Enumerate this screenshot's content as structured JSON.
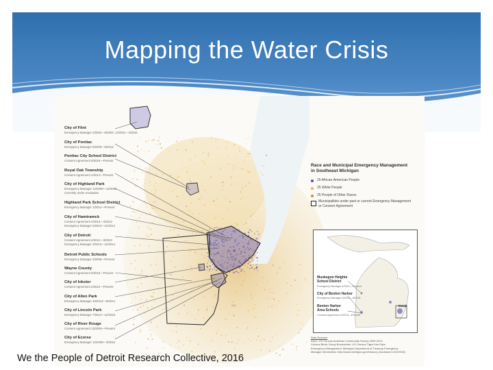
{
  "slide": {
    "title": "Mapping the Water Crisis",
    "caption": "We the People of Detroit Research Collective, 2016",
    "colors": {
      "header_top": "#2f6fad",
      "header_bottom": "#6ea4d8",
      "african_american": "#5a4fa3",
      "white": "#f0b441",
      "other": "#d98a3a"
    }
  },
  "map": {
    "cities": [
      {
        "name": "City of Flint",
        "detail": "Emergency Manager 2/2002—6/2004; 12/2011—4/2015"
      },
      {
        "name": "City of Pontiac",
        "detail": "Emergency Manager 8/2009—8/2013"
      },
      {
        "name": "Pontiac City School District",
        "detail": "Consent Agreement 8/2015—Present"
      },
      {
        "name": "Royal Oak Township",
        "detail": "Consent Agreement 4/2014—Present"
      },
      {
        "name": "City of Highland Park",
        "detail": "Emergency Manager 12/2000—12/2009",
        "detail2": "Currently under evaluation"
      },
      {
        "name": "Highland Park School District",
        "detail": "Emergency Manager 1/2012—Present"
      },
      {
        "name": "City of Hamtramck",
        "detail": "Consent Agreement 4/2013—4/2013",
        "detail2": "Emergency Manager 5/2013—12/2014"
      },
      {
        "name": "City of Detroit",
        "detail": "Consent Agreement 4/2012—3/2013",
        "detail2": "Emergency Manager 3/2013—12/2014"
      },
      {
        "name": "Detroit Public Schools",
        "detail": "Emergency Manager 3/2009—Present"
      },
      {
        "name": "Wayne County",
        "detail": "Consent Agreement 8/2015—Present"
      },
      {
        "name": "City of Inkster",
        "detail": "Consent Agreement 2/2012—Present"
      },
      {
        "name": "City of Allen Park",
        "detail": "Emergency Manager 10/2012—9/2014"
      },
      {
        "name": "City of Lincoln Park",
        "detail": "Emergency Manager 7/2014—12/2015"
      },
      {
        "name": "City of River Rouge",
        "detail": "Consent Agreement 12/2009—Present"
      },
      {
        "name": "City of Ecorse",
        "detail": "Emergency Manager 12/2009—4/2015"
      }
    ],
    "legend": {
      "title_line1": "Race and Municipal Emergency Management",
      "title_line2": "in Southeast Michigan",
      "item1": "25 African-American People",
      "item2": "25 White People",
      "item3": "25 People of Other Races",
      "item4_line1": "Municipalities under past or current Emergency Management",
      "item4_line2": "or Consent Agreement"
    },
    "inset": {
      "muskegon_name1": "Muskegon Heights",
      "muskegon_name2": "School District",
      "muskegon_detail": "Emergency Manager 4/2012—Present",
      "benton_city_name": "City of Benton Harbor",
      "benton_city_detail": "Emergency Manager 4/2010—5/2016",
      "benton_schools_name1": "Benton Harbor",
      "benton_schools_name2": "Area Schools",
      "benton_schools_detail": "Consent Agreement 9/2014—Present",
      "detail_label": "Detail"
    },
    "sources": {
      "heading": "Data Sources",
      "line1": "Race: US Census American Community Survey 2009-2013",
      "line2": "Census Block Group Boundaries: US Census Tiger/Line Data",
      "line3": "Emergency Management: Michigan Department of Treasury Emergency",
      "line4": "Manager Information: http://www.michigan.gov/treasury (Accessed 12/3/2015)"
    }
  }
}
